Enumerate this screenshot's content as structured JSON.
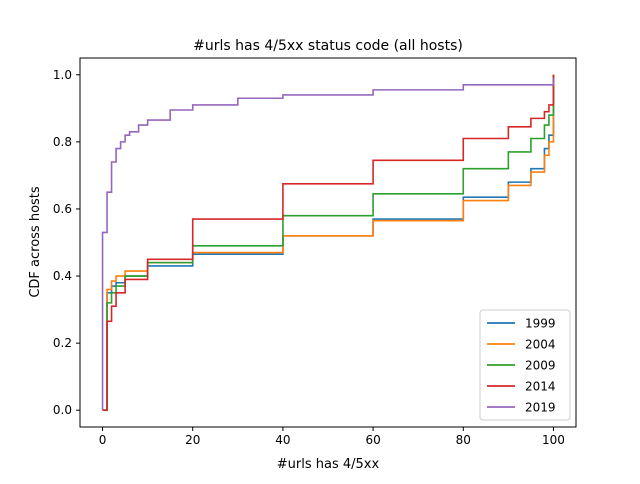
{
  "chart_data": {
    "type": "line",
    "title": "#urls has 4/5xx status code (all hosts)",
    "xlabel": "#urls has 4/5xx",
    "ylabel": "CDF across hosts",
    "xlim": [
      -5,
      105
    ],
    "ylim": [
      -0.05,
      1.05
    ],
    "xticks": [
      0,
      20,
      40,
      60,
      80,
      100
    ],
    "yticks": [
      0.0,
      0.2,
      0.4,
      0.6,
      0.8,
      1.0
    ],
    "xtick_labels": [
      "0",
      "20",
      "40",
      "60",
      "80",
      "100"
    ],
    "ytick_labels": [
      "0.0",
      "0.2",
      "0.4",
      "0.6",
      "0.8",
      "1.0"
    ],
    "grid": false,
    "legend_position": "lower-right",
    "step": true,
    "series": [
      {
        "name": "1999",
        "color": "#1f77b4",
        "x": [
          0,
          1,
          2,
          3,
          5,
          10,
          20,
          40,
          60,
          80,
          90,
          95,
          98,
          99,
          100
        ],
        "y": [
          0,
          0.35,
          0.37,
          0.38,
          0.4,
          0.43,
          0.465,
          0.52,
          0.57,
          0.635,
          0.68,
          0.72,
          0.78,
          0.82,
          1.0
        ]
      },
      {
        "name": "2004",
        "color": "#ff7f0e",
        "x": [
          0,
          1,
          2,
          3,
          5,
          10,
          20,
          40,
          60,
          80,
          90,
          95,
          98,
          99,
          100
        ],
        "y": [
          0,
          0.36,
          0.385,
          0.4,
          0.415,
          0.44,
          0.47,
          0.52,
          0.565,
          0.625,
          0.67,
          0.71,
          0.76,
          0.8,
          1.0
        ]
      },
      {
        "name": "2009",
        "color": "#2ca02c",
        "x": [
          0,
          1,
          2,
          3,
          5,
          10,
          20,
          40,
          60,
          80,
          90,
          95,
          98,
          99,
          100
        ],
        "y": [
          0,
          0.32,
          0.35,
          0.37,
          0.4,
          0.44,
          0.49,
          0.58,
          0.645,
          0.72,
          0.77,
          0.81,
          0.85,
          0.88,
          1.0
        ]
      },
      {
        "name": "2014",
        "color": "#d62728",
        "x": [
          0,
          1,
          2,
          3,
          5,
          10,
          20,
          40,
          60,
          80,
          90,
          95,
          98,
          99,
          100
        ],
        "y": [
          0,
          0.265,
          0.31,
          0.35,
          0.39,
          0.45,
          0.57,
          0.675,
          0.745,
          0.81,
          0.845,
          0.87,
          0.89,
          0.91,
          1.0
        ]
      },
      {
        "name": "2019",
        "color": "#9467bd",
        "x": [
          0,
          1,
          2,
          3,
          4,
          5,
          6,
          8,
          10,
          15,
          20,
          30,
          40,
          60,
          80,
          100
        ],
        "y": [
          0.53,
          0.65,
          0.74,
          0.78,
          0.8,
          0.82,
          0.83,
          0.85,
          0.865,
          0.895,
          0.91,
          0.93,
          0.94,
          0.955,
          0.97,
          0.99
        ]
      }
    ]
  }
}
